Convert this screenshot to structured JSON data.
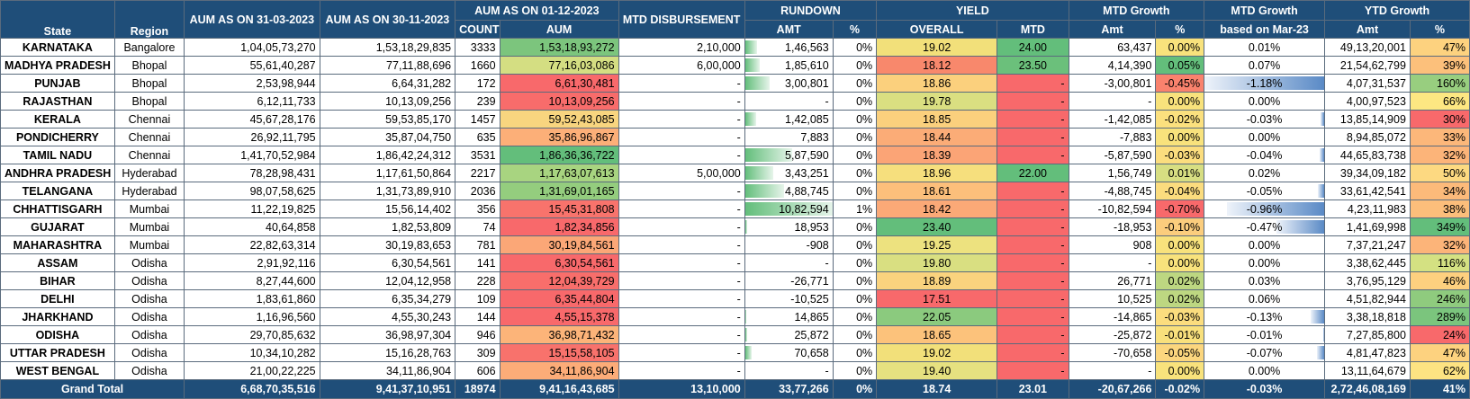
{
  "headers": {
    "state": "State",
    "region": "Region",
    "aum_mar": "AUM AS ON 31-03-2023",
    "aum_nov": "AUM AS ON 30-11-2023",
    "aum_dec": "AUM AS ON 01-12-2023",
    "count": "COUNT",
    "aum": "AUM",
    "mtd_disb": "MTD DISBURSEMENT",
    "rundown": "RUNDOWN",
    "amt": "AMT",
    "pct": "%",
    "yield": "YIELD",
    "overall": "OVERALL",
    "mtd": "MTD",
    "mtd_growth": "MTD Growth",
    "mtd_amt": "Amt",
    "mtd_growth_mar": "MTD Growth",
    "based_on_mar": "based on Mar-23",
    "ytd_growth": "YTD Growth",
    "ytd_amt": "Amt"
  },
  "colors": {
    "header_bg": "#1f4e79",
    "header_text": "#ffffff",
    "green": "#63be7b",
    "yellow": "#ffeb84",
    "red": "#f8696b",
    "bar_green": "#63be7b",
    "bar_blue": "#5a8ac6"
  },
  "rows": [
    {
      "state": "KARNATAKA",
      "region": "Bangalore",
      "aum_mar": "1,04,05,73,270",
      "aum_nov": "1,53,18,29,835",
      "count": "3333",
      "aum": "1,53,18,93,272",
      "aum_color": "#7cc57d",
      "disb": "2,10,000",
      "rd_amt": "1,46,563",
      "rd_bar": 0.14,
      "rd_pct": "0%",
      "y_overall": "19.02",
      "yo_color": "#f2e07a",
      "y_mtd": "24.00",
      "ym_color": "#63be7b",
      "mtd_amt": "63,437",
      "mtd_pct": "0.00%",
      "mp_color": "#f8e27c",
      "mar_pct": "0.01%",
      "mar_bar": 0,
      "ytd_amt": "49,13,20,001",
      "ytd_pct": "47%",
      "yp_color": "#fdd27f"
    },
    {
      "state": "MADHYA PRADESH",
      "region": "Bhopal",
      "aum_mar": "55,61,40,287",
      "aum_nov": "77,11,88,696",
      "count": "1660",
      "aum": "77,16,03,086",
      "aum_color": "#d4de82",
      "disb": "6,00,000",
      "rd_amt": "1,85,610",
      "rd_bar": 0.17,
      "rd_pct": "0%",
      "y_overall": "18.12",
      "yo_color": "#f8886c",
      "y_mtd": "23.50",
      "ym_color": "#6bc07b",
      "mtd_amt": "4,14,390",
      "mtd_pct": "0.05%",
      "mp_color": "#63be7b",
      "mar_pct": "0.07%",
      "mar_bar": 0,
      "ytd_amt": "21,54,62,799",
      "ytd_pct": "39%",
      "yp_color": "#fcc07b"
    },
    {
      "state": "PUNJAB",
      "region": "Bhopal",
      "aum_mar": "2,53,98,944",
      "aum_nov": "6,64,31,282",
      "count": "172",
      "aum": "6,61,30,481",
      "aum_color": "#f8696b",
      "disb": "-",
      "rd_amt": "3,00,801",
      "rd_bar": 0.28,
      "rd_pct": "0%",
      "y_overall": "18.86",
      "yo_color": "#fbd07d",
      "y_mtd": "-",
      "ym_color": "#f8696b",
      "mtd_amt": "-3,00,801",
      "mtd_pct": "-0.45%",
      "mp_color": "#f9826d",
      "mar_pct": "-1.18%",
      "mar_bar": 1.0,
      "ytd_amt": "4,07,31,537",
      "ytd_pct": "160%",
      "yp_color": "#98ce7f"
    },
    {
      "state": "RAJASTHAN",
      "region": "Bhopal",
      "aum_mar": "6,12,11,733",
      "aum_nov": "10,13,09,256",
      "count": "239",
      "aum": "10,13,09,256",
      "aum_color": "#f86c6b",
      "disb": "-",
      "rd_amt": "-",
      "rd_bar": 0,
      "rd_pct": "0%",
      "y_overall": "19.78",
      "yo_color": "#dadf81",
      "y_mtd": "-",
      "ym_color": "#f8696b",
      "mtd_amt": "-",
      "mtd_pct": "0.00%",
      "mp_color": "#f8e27c",
      "mar_pct": "0.00%",
      "mar_bar": 0,
      "ytd_amt": "4,00,97,523",
      "ytd_pct": "66%",
      "yp_color": "#fde782"
    },
    {
      "state": "KERALA",
      "region": "Chennai",
      "aum_mar": "45,67,28,176",
      "aum_nov": "59,53,85,170",
      "count": "1457",
      "aum": "59,52,43,085",
      "aum_color": "#f8d57f",
      "disb": "-",
      "rd_amt": "1,42,085",
      "rd_bar": 0.13,
      "rd_pct": "0%",
      "y_overall": "18.85",
      "yo_color": "#fbd07d",
      "y_mtd": "-",
      "ym_color": "#f8696b",
      "mtd_amt": "-1,42,085",
      "mtd_pct": "-0.02%",
      "mp_color": "#fbe07e",
      "mar_pct": "-0.03%",
      "mar_bar": 0.03,
      "ytd_amt": "13,85,14,909",
      "ytd_pct": "30%",
      "yp_color": "#f8696b"
    },
    {
      "state": "PONDICHERRY",
      "region": "Chennai",
      "aum_mar": "26,92,11,795",
      "aum_nov": "35,87,04,750",
      "count": "635",
      "aum": "35,86,96,867",
      "aum_color": "#fcaf78",
      "disb": "-",
      "rd_amt": "7,883",
      "rd_bar": 0,
      "rd_pct": "0%",
      "y_overall": "18.44",
      "yo_color": "#fbac77",
      "y_mtd": "-",
      "ym_color": "#f8696b",
      "mtd_amt": "-7,883",
      "mtd_pct": "0.00%",
      "mp_color": "#f8e27c",
      "mar_pct": "0.00%",
      "mar_bar": 0,
      "ytd_amt": "8,94,85,072",
      "ytd_pct": "33%",
      "yp_color": "#fcb77a"
    },
    {
      "state": "TAMIL NADU",
      "region": "Chennai",
      "aum_mar": "1,41,70,52,984",
      "aum_nov": "1,86,42,24,312",
      "count": "3531",
      "aum": "1,86,36,36,722",
      "aum_color": "#63be7b",
      "disb": "-",
      "rd_amt": "5,87,590",
      "rd_bar": 0.54,
      "rd_pct": "0%",
      "y_overall": "18.39",
      "yo_color": "#fba476",
      "y_mtd": "-",
      "ym_color": "#f8696b",
      "mtd_amt": "-5,87,590",
      "mtd_pct": "-0.03%",
      "mp_color": "#fbdd7e",
      "mar_pct": "-0.04%",
      "mar_bar": 0.04,
      "ytd_amt": "44,65,83,738",
      "ytd_pct": "32%",
      "yp_color": "#fcb479"
    },
    {
      "state": "ANDHRA PRADESH",
      "region": "Hyderabad",
      "aum_mar": "78,28,98,431",
      "aum_nov": "1,17,61,50,864",
      "count": "2217",
      "aum": "1,17,63,07,613",
      "aum_color": "#a8d480",
      "disb": "5,00,000",
      "rd_amt": "3,43,251",
      "rd_bar": 0.32,
      "rd_pct": "0%",
      "y_overall": "18.96",
      "yo_color": "#f6df7d",
      "y_mtd": "22.00",
      "ym_color": "#63be7b",
      "mtd_amt": "1,56,749",
      "mtd_pct": "0.01%",
      "mp_color": "#d7de82",
      "mar_pct": "0.02%",
      "mar_bar": 0,
      "ytd_amt": "39,34,09,182",
      "ytd_pct": "50%",
      "yp_color": "#fdd981"
    },
    {
      "state": "TELANGANA",
      "region": "Hyderabad",
      "aum_mar": "98,07,58,625",
      "aum_nov": "1,31,73,89,910",
      "count": "2036",
      "aum": "1,31,69,01,165",
      "aum_color": "#94cd7e",
      "disb": "-",
      "rd_amt": "4,88,745",
      "rd_bar": 0.45,
      "rd_pct": "0%",
      "y_overall": "18.61",
      "yo_color": "#fcbf7b",
      "y_mtd": "-",
      "ym_color": "#f8696b",
      "mtd_amt": "-4,88,745",
      "mtd_pct": "-0.04%",
      "mp_color": "#fbdc7e",
      "mar_pct": "-0.05%",
      "mar_bar": 0.05,
      "ytd_amt": "33,61,42,541",
      "ytd_pct": "34%",
      "yp_color": "#fcba7a"
    },
    {
      "state": "CHHATTISGARH",
      "region": "Mumbai",
      "aum_mar": "11,22,19,825",
      "aum_nov": "15,56,14,402",
      "count": "356",
      "aum": "15,45,31,808",
      "aum_color": "#f8736c",
      "disb": "-",
      "rd_amt": "10,82,594",
      "rd_bar": 1.0,
      "rd_pct": "1%",
      "y_overall": "18.42",
      "yo_color": "#fba977",
      "y_mtd": "-",
      "ym_color": "#f8696b",
      "mtd_amt": "-10,82,594",
      "mtd_pct": "-0.70%",
      "mp_color": "#f8696b",
      "mar_pct": "-0.96%",
      "mar_bar": 0.81,
      "ytd_amt": "4,23,11,983",
      "ytd_pct": "38%",
      "yp_color": "#fcbe7b"
    },
    {
      "state": "GUJARAT",
      "region": "Mumbai",
      "aum_mar": "40,64,858",
      "aum_nov": "1,82,53,809",
      "count": "74",
      "aum": "1,82,34,856",
      "aum_color": "#f8696b",
      "disb": "-",
      "rd_amt": "18,953",
      "rd_bar": 0.02,
      "rd_pct": "0%",
      "y_overall": "23.40",
      "yo_color": "#63be7b",
      "y_mtd": "-",
      "ym_color": "#f8696b",
      "mtd_amt": "-18,953",
      "mtd_pct": "-0.10%",
      "mp_color": "#fbcd7d",
      "mar_pct": "-0.47%",
      "mar_bar": 0.4,
      "ytd_amt": "1,41,69,998",
      "ytd_pct": "349%",
      "yp_color": "#63be7b"
    },
    {
      "state": "MAHARASHTRA",
      "region": "Mumbai",
      "aum_mar": "22,82,63,314",
      "aum_nov": "30,19,83,653",
      "count": "781",
      "aum": "30,19,84,561",
      "aum_color": "#fba777",
      "disb": "-",
      "rd_amt": "-908",
      "rd_bar": 0,
      "rd_pct": "0%",
      "y_overall": "19.25",
      "yo_color": "#ede27f",
      "y_mtd": "-",
      "ym_color": "#f8696b",
      "mtd_amt": "908",
      "mtd_pct": "0.00%",
      "mp_color": "#f8e27c",
      "mar_pct": "0.00%",
      "mar_bar": 0,
      "ytd_amt": "7,37,21,247",
      "ytd_pct": "32%",
      "yp_color": "#fcb479"
    },
    {
      "state": "ASSAM",
      "region": "Odisha",
      "aum_mar": "2,91,92,116",
      "aum_nov": "6,30,54,561",
      "count": "141",
      "aum": "6,30,54,561",
      "aum_color": "#f8696b",
      "disb": "-",
      "rd_amt": "-",
      "rd_bar": 0,
      "rd_pct": "0%",
      "y_overall": "19.80",
      "yo_color": "#d9df81",
      "y_mtd": "-",
      "ym_color": "#f8696b",
      "mtd_amt": "-",
      "mtd_pct": "0.00%",
      "mp_color": "#f8e27c",
      "mar_pct": "0.00%",
      "mar_bar": 0,
      "ytd_amt": "3,38,62,445",
      "ytd_pct": "116%",
      "yp_color": "#d4e182"
    },
    {
      "state": "BIHAR",
      "region": "Odisha",
      "aum_mar": "8,27,44,600",
      "aum_nov": "12,04,12,958",
      "count": "228",
      "aum": "12,04,39,729",
      "aum_color": "#f86e6b",
      "disb": "-",
      "rd_amt": "-26,771",
      "rd_bar": 0,
      "rd_pct": "0%",
      "y_overall": "18.89",
      "yo_color": "#fad37e",
      "y_mtd": "-",
      "ym_color": "#f8696b",
      "mtd_amt": "26,771",
      "mtd_pct": "0.02%",
      "mp_color": "#bdd781",
      "mar_pct": "0.03%",
      "mar_bar": 0,
      "ytd_amt": "3,76,95,129",
      "ytd_pct": "46%",
      "yp_color": "#fdd07f"
    },
    {
      "state": "DELHI",
      "region": "Odisha",
      "aum_mar": "1,83,61,860",
      "aum_nov": "6,35,34,279",
      "count": "109",
      "aum": "6,35,44,804",
      "aum_color": "#f8696b",
      "disb": "-",
      "rd_amt": "-10,525",
      "rd_bar": 0,
      "rd_pct": "0%",
      "y_overall": "17.51",
      "yo_color": "#f8696b",
      "y_mtd": "-",
      "ym_color": "#f8696b",
      "mtd_amt": "10,525",
      "mtd_pct": "0.02%",
      "mp_color": "#bdd781",
      "mar_pct": "0.06%",
      "mar_bar": 0,
      "ytd_amt": "4,51,82,944",
      "ytd_pct": "246%",
      "yp_color": "#8fcb7e"
    },
    {
      "state": "JHARKHAND",
      "region": "Odisha",
      "aum_mar": "1,16,96,560",
      "aum_nov": "4,55,30,243",
      "count": "144",
      "aum": "4,55,15,378",
      "aum_color": "#f8696b",
      "disb": "-",
      "rd_amt": "14,865",
      "rd_bar": 0.01,
      "rd_pct": "0%",
      "y_overall": "22.05",
      "yo_color": "#8bca7e",
      "y_mtd": "-",
      "ym_color": "#f8696b",
      "mtd_amt": "-14,865",
      "mtd_pct": "-0.03%",
      "mp_color": "#fbdd7e",
      "mar_pct": "-0.13%",
      "mar_bar": 0.11,
      "ytd_amt": "3,38,18,818",
      "ytd_pct": "289%",
      "yp_color": "#7bc57d"
    },
    {
      "state": "ODISHA",
      "region": "Odisha",
      "aum_mar": "29,70,85,632",
      "aum_nov": "36,98,97,304",
      "count": "946",
      "aum": "36,98,71,432",
      "aum_color": "#fcb479",
      "disb": "-",
      "rd_amt": "25,872",
      "rd_bar": 0.02,
      "rd_pct": "0%",
      "y_overall": "18.65",
      "yo_color": "#fcc27b",
      "y_mtd": "-",
      "ym_color": "#f8696b",
      "mtd_amt": "-25,872",
      "mtd_pct": "-0.01%",
      "mp_color": "#f8e07c",
      "mar_pct": "-0.01%",
      "mar_bar": 0.01,
      "ytd_amt": "7,27,85,800",
      "ytd_pct": "24%",
      "yp_color": "#f8696b"
    },
    {
      "state": "UTTAR PRADESH",
      "region": "Odisha",
      "aum_mar": "10,34,10,282",
      "aum_nov": "15,16,28,763",
      "count": "309",
      "aum": "15,15,58,105",
      "aum_color": "#f8726c",
      "disb": "-",
      "rd_amt": "70,658",
      "rd_bar": 0.07,
      "rd_pct": "0%",
      "y_overall": "19.02",
      "yo_color": "#f2e07a",
      "y_mtd": "-",
      "ym_color": "#f8696b",
      "mtd_amt": "-70,658",
      "mtd_pct": "-0.05%",
      "mp_color": "#fbd67e",
      "mar_pct": "-0.07%",
      "mar_bar": 0.06,
      "ytd_amt": "4,81,47,823",
      "ytd_pct": "47%",
      "yp_color": "#fdd27f"
    },
    {
      "state": "WEST BENGAL",
      "region": "Odisha",
      "aum_mar": "21,00,22,225",
      "aum_nov": "34,11,86,904",
      "count": "606",
      "aum": "34,11,86,904",
      "aum_color": "#fcac78",
      "disb": "-",
      "rd_amt": "-",
      "rd_bar": 0,
      "rd_pct": "0%",
      "y_overall": "19.40",
      "yo_color": "#e6e180",
      "y_mtd": "-",
      "ym_color": "#f8696b",
      "mtd_amt": "-",
      "mtd_pct": "0.00%",
      "mp_color": "#f8e27c",
      "mar_pct": "0.00%",
      "mar_bar": 0,
      "ytd_amt": "13,11,64,679",
      "ytd_pct": "62%",
      "yp_color": "#fde382"
    }
  ],
  "total": {
    "label": "Grand Total",
    "aum_mar": "6,68,70,35,516",
    "aum_nov": "9,41,37,10,951",
    "count": "18974",
    "aum": "9,41,16,43,685",
    "disb": "13,10,000",
    "rd_amt": "33,77,266",
    "rd_pct": "0%",
    "y_overall": "18.74",
    "y_mtd": "23.01",
    "mtd_amt": "-20,67,266",
    "mtd_pct": "-0.02%",
    "mar_pct": "-0.03%",
    "ytd_amt": "2,72,46,08,169",
    "ytd_pct": "41%"
  }
}
